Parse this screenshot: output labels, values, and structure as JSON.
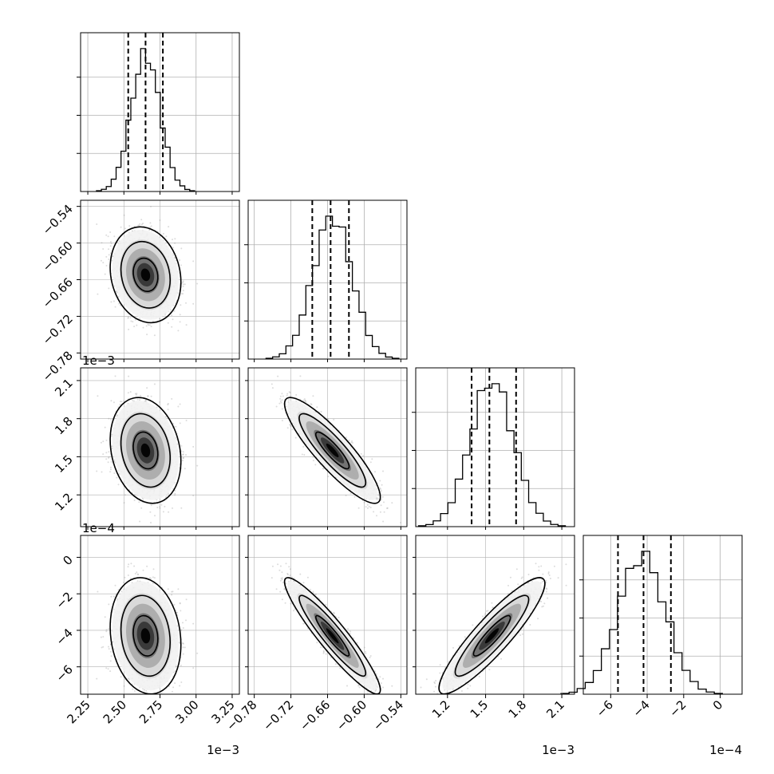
{
  "chart_data": {
    "type": "corner",
    "description_params": 4,
    "grid": true,
    "colors": {
      "line": "#000000",
      "grid": "#b0b0b0",
      "samples": "#9a9a9a",
      "density": "#000000"
    },
    "params": [
      {
        "range": [
          2.2,
          3.3
        ],
        "ticks": [
          2.25,
          2.5,
          2.75,
          3.0,
          3.25
        ],
        "tick_labels": [
          "2.25",
          "2.50",
          "2.75",
          "3.00",
          "3.25"
        ],
        "offset": "1e−3",
        "mean": 2.65,
        "sd": 0.1,
        "quantiles": [
          2.53,
          2.65,
          2.77
        ]
      },
      {
        "range": [
          -0.79,
          -0.53
        ],
        "ticks": [
          -0.78,
          -0.72,
          -0.66,
          -0.6,
          -0.54
        ],
        "tick_labels": [
          "−0.78",
          "−0.72",
          "−0.66",
          "−0.60",
          "−0.54"
        ],
        "offset": "",
        "mean": -0.652,
        "sd": 0.032,
        "quantiles": [
          -0.685,
          -0.655,
          -0.625
        ]
      },
      {
        "range": [
          0.95,
          2.2
        ],
        "ticks": [
          1.2,
          1.5,
          1.8,
          2.1
        ],
        "tick_labels": [
          "1.2",
          "1.5",
          "1.8",
          "2.1"
        ],
        "offset": "1e−3",
        "mean": 1.55,
        "sd": 0.17,
        "quantiles": [
          1.39,
          1.53,
          1.74
        ]
      },
      {
        "range": [
          -7.5,
          1.2
        ],
        "ticks": [
          -6,
          -4,
          -2,
          0
        ],
        "tick_labels": [
          "−6",
          "−4",
          "−2",
          "0"
        ],
        "offset": "1e−4",
        "mean": -4.3,
        "sd": 1.3,
        "quantiles": [
          -5.6,
          -4.2,
          -2.7
        ]
      }
    ],
    "correlations": [
      [
        1.0,
        -0.15,
        -0.2,
        -0.15
      ],
      [
        -0.15,
        1.0,
        -0.88,
        -0.93
      ],
      [
        -0.2,
        -0.88,
        1.0,
        0.9
      ],
      [
        -0.15,
        -0.93,
        0.9,
        1.0
      ]
    ],
    "histogram_bins": 20,
    "contour_levels": [
      0.39,
      0.86,
      0.99
    ]
  }
}
